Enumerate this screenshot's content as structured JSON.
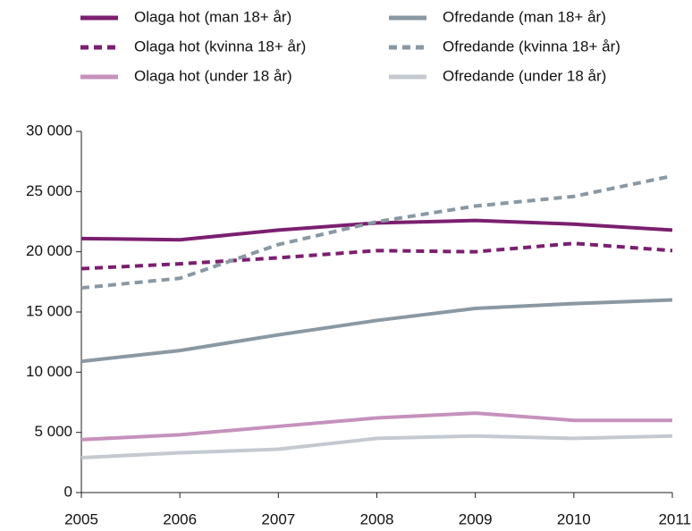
{
  "chart_data": {
    "type": "line",
    "categories": [
      "2005",
      "2006",
      "2007",
      "2008",
      "2009",
      "2010",
      "2011"
    ],
    "series": [
      {
        "name": "Olaga hot (man  18+ år)",
        "color": "#7b1f6f",
        "dashed": false,
        "values": [
          21100,
          21000,
          21800,
          22400,
          22600,
          22300,
          21800
        ]
      },
      {
        "name": "Olaga hot (kvinna 18+ år)",
        "color": "#7b1f6f",
        "dashed": true,
        "values": [
          18600,
          19000,
          19500,
          20100,
          20000,
          20700,
          20100
        ]
      },
      {
        "name": "Olaga hot (under 18 år)",
        "color": "#c691bd",
        "dashed": false,
        "values": [
          4400,
          4800,
          5500,
          6200,
          6600,
          6000,
          6000
        ]
      },
      {
        "name": "Ofredande (man 18+ år)",
        "color": "#8a98a3",
        "dashed": false,
        "values": [
          10900,
          11800,
          13100,
          14300,
          15300,
          15700,
          16000
        ]
      },
      {
        "name": "Ofredande (kvinna 18+ år)",
        "color": "#8a98a3",
        "dashed": true,
        "values": [
          17000,
          17800,
          20600,
          22500,
          23800,
          24600,
          26300
        ]
      },
      {
        "name": "Ofredande (under 18 år)",
        "color": "#c4cacf",
        "dashed": false,
        "values": [
          2900,
          3300,
          3600,
          4500,
          4700,
          4500,
          4700
        ]
      }
    ],
    "ylim": [
      0,
      30000
    ],
    "yticks": [
      {
        "value": 0,
        "label": "0"
      },
      {
        "value": 5000,
        "label": "5 000"
      },
      {
        "value": 10000,
        "label": "10 000"
      },
      {
        "value": 15000,
        "label": "15 000"
      },
      {
        "value": 20000,
        "label": "20 000"
      },
      {
        "value": 25000,
        "label": "25 000"
      },
      {
        "value": 30000,
        "label": "30 000"
      }
    ],
    "grid": false
  }
}
